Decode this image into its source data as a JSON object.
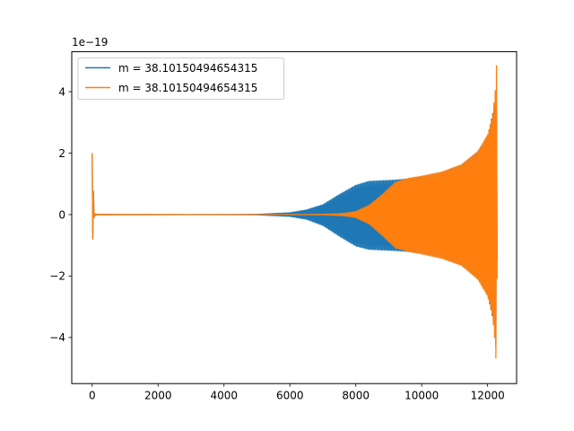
{
  "chart_data": {
    "type": "line",
    "title": "",
    "xlabel": "",
    "ylabel": "",
    "offset_text": "1e−19",
    "xlim": [
      -620,
      12880
    ],
    "ylim": [
      -5.5,
      5.3
    ],
    "x_ticks": [
      {
        "value": 0,
        "label": "0"
      },
      {
        "value": 2000,
        "label": "2000"
      },
      {
        "value": 4000,
        "label": "4000"
      },
      {
        "value": 6000,
        "label": "6000"
      },
      {
        "value": 8000,
        "label": "8000"
      },
      {
        "value": 10000,
        "label": "10000"
      },
      {
        "value": 12000,
        "label": "12000"
      }
    ],
    "y_ticks": [
      {
        "value": -4,
        "label": "−4"
      },
      {
        "value": -2,
        "label": "−2"
      },
      {
        "value": 0,
        "label": "0"
      },
      {
        "value": 2,
        "label": "2"
      },
      {
        "value": 4,
        "label": "4"
      }
    ],
    "grid": false,
    "legend_position": "upper-left",
    "series": [
      {
        "name": "m = 38.10150494654315",
        "color": "#1f77b4",
        "envelope": {
          "x": [
            0,
            60,
            120,
            3000,
            5000,
            6000,
            6500,
            7000,
            7500,
            8000,
            8400,
            8800,
            9200,
            9600,
            10000,
            10600,
            11200,
            11700,
            12000,
            12200,
            12260,
            12300
          ],
          "upper": [
            1.95,
            0.05,
            0.01,
            0.0,
            0.01,
            0.06,
            0.15,
            0.32,
            0.65,
            0.95,
            1.08,
            1.1,
            1.12,
            1.16,
            1.22,
            1.35,
            1.6,
            2.05,
            2.55,
            3.5,
            4.2,
            0.3
          ],
          "lower": [
            -1.1,
            -0.05,
            -0.01,
            0.0,
            -0.01,
            -0.06,
            -0.15,
            -0.35,
            -0.7,
            -1.02,
            -1.13,
            -1.15,
            -1.17,
            -1.2,
            -1.25,
            -1.38,
            -1.62,
            -2.05,
            -2.6,
            -3.6,
            -4.4,
            -0.3
          ]
        }
      },
      {
        "name": "m = 38.10150494654315",
        "color": "#ff7f0e",
        "envelope": {
          "x": [
            0,
            60,
            120,
            3000,
            6000,
            7000,
            7500,
            7800,
            8000,
            8400,
            8800,
            9200,
            9600,
            10000,
            10600,
            11200,
            11700,
            12000,
            12150,
            12230,
            12270,
            12300
          ],
          "upper": [
            2.0,
            0.05,
            0.01,
            0.0,
            0.0,
            0.01,
            0.03,
            0.06,
            0.1,
            0.3,
            0.65,
            1.05,
            1.18,
            1.25,
            1.38,
            1.62,
            2.05,
            2.6,
            3.2,
            4.0,
            4.85,
            0.3
          ],
          "lower": [
            -1.15,
            -0.05,
            -0.01,
            0.0,
            0.0,
            -0.01,
            -0.03,
            -0.06,
            -0.1,
            -0.3,
            -0.68,
            -1.08,
            -1.2,
            -1.28,
            -1.42,
            -1.65,
            -2.1,
            -2.65,
            -3.3,
            -4.2,
            -5.1,
            -0.3
          ]
        }
      }
    ]
  }
}
